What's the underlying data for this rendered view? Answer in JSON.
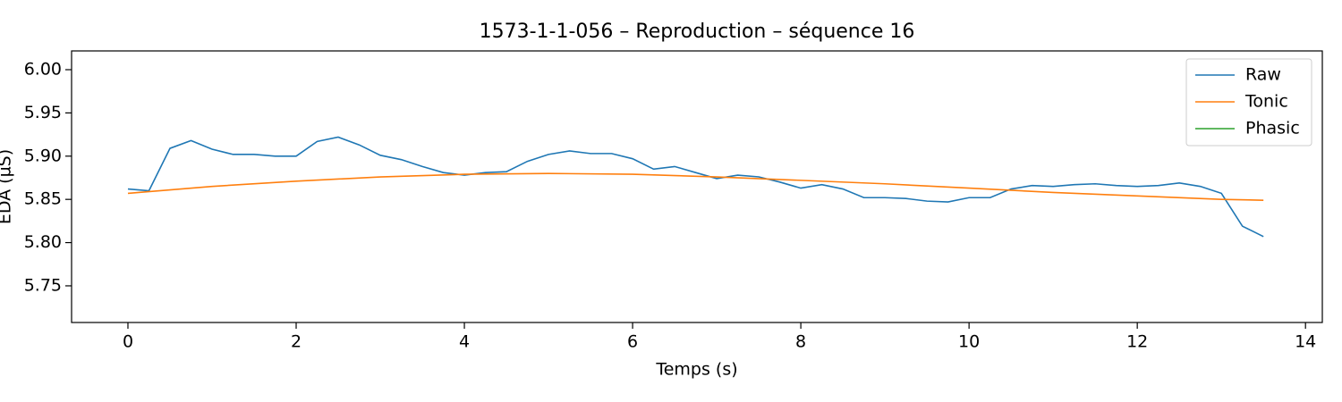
{
  "chart_data": {
    "type": "line",
    "title": "1573-1-1-056 – Reproduction – séquence 16",
    "xlabel": "Temps (s)",
    "ylabel": "EDA (µS)",
    "x": [
      0,
      0.25,
      0.5,
      0.75,
      1,
      1.25,
      1.5,
      1.75,
      2,
      2.25,
      2.5,
      2.75,
      3,
      3.25,
      3.5,
      3.75,
      4,
      4.25,
      4.5,
      4.75,
      5,
      5.25,
      5.5,
      5.75,
      6,
      6.25,
      6.5,
      6.75,
      7,
      7.25,
      7.5,
      7.75,
      8,
      8.25,
      8.5,
      8.75,
      9,
      9.25,
      9.5,
      9.75,
      10,
      10.25,
      10.5,
      10.75,
      11,
      11.25,
      11.5,
      11.75,
      12,
      12.25,
      12.5,
      12.75,
      13,
      13.25,
      13.5
    ],
    "series": [
      {
        "name": "Raw",
        "color": "#1f77b4",
        "values": [
          5.862,
          5.86,
          5.909,
          5.918,
          5.908,
          5.902,
          5.902,
          5.9,
          5.9,
          5.917,
          5.922,
          5.913,
          5.901,
          5.896,
          5.888,
          5.881,
          5.878,
          5.881,
          5.882,
          5.894,
          5.902,
          5.906,
          5.903,
          5.903,
          5.897,
          5.885,
          5.888,
          5.881,
          5.874,
          5.878,
          5.876,
          5.87,
          5.863,
          5.867,
          5.862,
          5.852,
          5.852,
          5.851,
          5.848,
          5.847,
          5.852,
          5.852,
          5.862,
          5.866,
          5.865,
          5.867,
          5.868,
          5.866,
          5.865,
          5.866,
          5.869,
          5.865,
          5.857,
          5.819,
          5.807
        ]
      },
      {
        "name": "Tonic",
        "color": "#ff7f0e",
        "x": [
          0,
          1,
          2,
          3,
          4,
          5,
          6,
          7,
          8,
          9,
          10,
          11,
          12,
          13,
          13.5
        ],
        "values": [
          5.857,
          5.865,
          5.871,
          5.876,
          5.879,
          5.88,
          5.879,
          5.876,
          5.872,
          5.868,
          5.863,
          5.858,
          5.854,
          5.85,
          5.849
        ]
      },
      {
        "name": "Phasic",
        "color": "#2ca02c",
        "x": [],
        "values": []
      }
    ],
    "xlim": [
      -0.67,
      14.2
    ],
    "xticks": [
      0,
      2,
      4,
      6,
      8,
      10,
      12,
      14
    ],
    "ylim": [
      5.7076,
      6.0217
    ],
    "yticks": [
      {
        "value": 5.75,
        "label": "5.75"
      },
      {
        "value": 5.8,
        "label": "5.80"
      },
      {
        "value": 5.85,
        "label": "5.85"
      },
      {
        "value": 5.9,
        "label": "5.90"
      },
      {
        "value": 5.95,
        "label": "5.95"
      },
      {
        "value": 6,
        "label": "6.00"
      }
    ],
    "legend": "upper right",
    "grid": false
  }
}
